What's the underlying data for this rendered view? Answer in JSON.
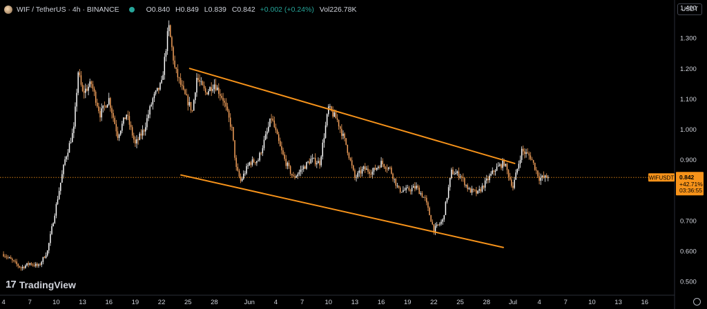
{
  "header": {
    "symbol": "WIF / TetherUS · 4h · BINANCE",
    "open_label": "O",
    "open": "0.840",
    "high_label": "H",
    "high": "0.849",
    "low_label": "L",
    "low": "0.839",
    "close_label": "C",
    "close": "0.842",
    "change": "+0.002 (+0.24%)",
    "vol_label": "Vol",
    "vol": "226.78K"
  },
  "currency_button": "USDT",
  "watermark": "TradingView",
  "price_tag": {
    "symbol": "WIFUSDT",
    "price": "0.842",
    "change": "+42.71%",
    "countdown": "03:36:55"
  },
  "colors": {
    "background": "#000000",
    "candle": "#f7a35c",
    "candle_up": "#ffffff",
    "trendline": "#f7931a",
    "axis_text": "#d1d4dc",
    "price_tag": "#f7931a",
    "status_dot": "#26a69a"
  },
  "chart_data": {
    "type": "candlestick-line",
    "y_axis": {
      "ticks": [
        "1.400",
        "1.300",
        "1.200",
        "1.100",
        "1.000",
        "0.900",
        "0.700",
        "0.600",
        "0.500"
      ],
      "tick_values": [
        1.4,
        1.3,
        1.2,
        1.1,
        1.0,
        0.9,
        0.7,
        0.6,
        0.5
      ],
      "range": [
        0.455,
        1.425
      ]
    },
    "x_axis": {
      "ticks": [
        "4",
        "7",
        "10",
        "13",
        "16",
        "19",
        "22",
        "25",
        "28",
        "Jun",
        "4",
        "7",
        "10",
        "13",
        "16",
        "19",
        "22",
        "25",
        "28",
        "Jul",
        "4",
        "7",
        "10",
        "13",
        "16"
      ],
      "tick_days": [
        0,
        3,
        6,
        9,
        12,
        15,
        18,
        21,
        24,
        28,
        31,
        34,
        37,
        40,
        43,
        46,
        49,
        52,
        55,
        58,
        61,
        64,
        67,
        70,
        73
      ],
      "range_days": [
        -0.4,
        76.4
      ],
      "start_date": "May 4"
    },
    "price_path": [
      {
        "d": 0,
        "p": 0.59
      },
      {
        "d": 2,
        "p": 0.545
      },
      {
        "d": 3,
        "p": 0.56
      },
      {
        "d": 4,
        "p": 0.55
      },
      {
        "d": 5,
        "p": 0.6
      },
      {
        "d": 6,
        "p": 0.75
      },
      {
        "d": 7,
        "p": 0.9
      },
      {
        "d": 8,
        "p": 1.0
      },
      {
        "d": 8.5,
        "p": 1.19
      },
      {
        "d": 9,
        "p": 1.12
      },
      {
        "d": 10,
        "p": 1.15
      },
      {
        "d": 11,
        "p": 1.05
      },
      {
        "d": 12,
        "p": 1.1
      },
      {
        "d": 13,
        "p": 0.98
      },
      {
        "d": 14,
        "p": 1.05
      },
      {
        "d": 15,
        "p": 0.95
      },
      {
        "d": 16,
        "p": 1.0
      },
      {
        "d": 17,
        "p": 1.1
      },
      {
        "d": 18,
        "p": 1.15
      },
      {
        "d": 18.8,
        "p": 1.34
      },
      {
        "d": 19.5,
        "p": 1.2
      },
      {
        "d": 20.5,
        "p": 1.12
      },
      {
        "d": 21.5,
        "p": 1.06
      },
      {
        "d": 22,
        "p": 1.17
      },
      {
        "d": 23,
        "p": 1.12
      },
      {
        "d": 24,
        "p": 1.15
      },
      {
        "d": 25,
        "p": 1.1
      },
      {
        "d": 26,
        "p": 1.0
      },
      {
        "d": 26.5,
        "p": 0.87
      },
      {
        "d": 27,
        "p": 0.83
      },
      {
        "d": 28,
        "p": 0.89
      },
      {
        "d": 29,
        "p": 0.9
      },
      {
        "d": 30,
        "p": 0.99
      },
      {
        "d": 30.5,
        "p": 1.04
      },
      {
        "d": 31.5,
        "p": 0.94
      },
      {
        "d": 32,
        "p": 0.9
      },
      {
        "d": 33,
        "p": 0.84
      },
      {
        "d": 34,
        "p": 0.87
      },
      {
        "d": 35,
        "p": 0.9
      },
      {
        "d": 36,
        "p": 0.89
      },
      {
        "d": 37,
        "p": 1.07
      },
      {
        "d": 38,
        "p": 1.03
      },
      {
        "d": 39,
        "p": 0.95
      },
      {
        "d": 40,
        "p": 0.84
      },
      {
        "d": 41,
        "p": 0.87
      },
      {
        "d": 42,
        "p": 0.86
      },
      {
        "d": 43,
        "p": 0.89
      },
      {
        "d": 44,
        "p": 0.87
      },
      {
        "d": 45,
        "p": 0.8
      },
      {
        "d": 46,
        "p": 0.8
      },
      {
        "d": 47,
        "p": 0.81
      },
      {
        "d": 48,
        "p": 0.77
      },
      {
        "d": 49,
        "p": 0.67
      },
      {
        "d": 50,
        "p": 0.7
      },
      {
        "d": 51,
        "p": 0.86
      },
      {
        "d": 52,
        "p": 0.85
      },
      {
        "d": 53,
        "p": 0.8
      },
      {
        "d": 54,
        "p": 0.79
      },
      {
        "d": 55,
        "p": 0.83
      },
      {
        "d": 56,
        "p": 0.87
      },
      {
        "d": 57,
        "p": 0.89
      },
      {
        "d": 58,
        "p": 0.81
      },
      {
        "d": 59,
        "p": 0.93
      },
      {
        "d": 60,
        "p": 0.91
      },
      {
        "d": 61,
        "p": 0.84
      },
      {
        "d": 62,
        "p": 0.842
      }
    ],
    "trendlines": [
      {
        "name": "channel-upper",
        "from": {
          "d": 21.2,
          "p": 1.2
        },
        "to": {
          "d": 58.2,
          "p": 0.888
        }
      },
      {
        "name": "channel-lower",
        "from": {
          "d": 20.2,
          "p": 0.85
        },
        "to": {
          "d": 56.9,
          "p": 0.612
        }
      }
    ],
    "last_price": 0.842
  }
}
